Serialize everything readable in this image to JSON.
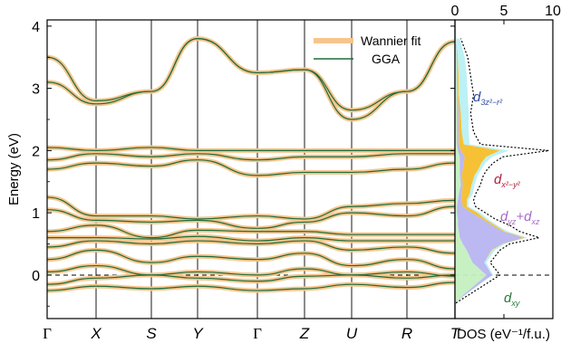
{
  "colors": {
    "wannier": "#f6c58d",
    "gga": "#1f6b3a",
    "frame": "#000000",
    "dos_dz2": "#b8f0f4",
    "dos_dx2y2": "#f5be2a",
    "dos_dyzxz": "#b8b4f0",
    "dos_dxy": "#c4f0c0",
    "label_dz2": "#2e4b9c",
    "label_dx2y2": "#b3203a",
    "label_dyzxz": "#a86ac8",
    "label_dxy": "#2a7a38"
  },
  "legend": {
    "wannier": "Wannier fit",
    "gga": "GGA"
  },
  "ylabel": "Energy (eV)",
  "dos_xlabel": "DOS (eV⁻¹/f.u.)",
  "kpoints": [
    "Γ",
    "X",
    "S",
    "Y",
    "Γ",
    "Z",
    "U",
    "R",
    "T"
  ],
  "orbitals": {
    "dz2": {
      "main": "d",
      "sub": "3z²−r²"
    },
    "dx2y2": {
      "main": "d",
      "sub": "x²−y²"
    },
    "dyzxz": {
      "main1": "d",
      "sub1": "yz",
      "plus": "+",
      "main2": "d",
      "sub2": "xz"
    },
    "dxy": {
      "main": "d",
      "sub": "xy"
    }
  },
  "chart_data": [
    {
      "type": "line",
      "title": "",
      "xlabel": "",
      "ylabel": "Energy (eV)",
      "ylim": [
        -0.7,
        4.1
      ],
      "yticks": [
        0,
        1,
        2,
        3,
        4
      ],
      "x_tick_labels": [
        "Γ",
        "X",
        "S",
        "Y",
        "Γ",
        "Z",
        "U",
        "R",
        "T"
      ],
      "fermi_level": 0,
      "series": [
        {
          "name": "Wannier fit",
          "style": "thick light orange"
        },
        {
          "name": "GGA",
          "style": "thin dark green"
        }
      ],
      "bands": [
        [
          -0.25,
          -0.18,
          -0.22,
          -0.18,
          -0.25,
          -0.22,
          -0.15,
          -0.2,
          -0.12
        ],
        [
          -0.15,
          -0.05,
          0.0,
          -0.05,
          -0.1,
          -0.02,
          0.0,
          -0.05,
          0.0
        ],
        [
          0.05,
          0.15,
          0.0,
          0.05,
          0.0,
          0.1,
          0.0,
          0.05,
          -0.02
        ],
        [
          0.25,
          0.4,
          0.2,
          0.3,
          0.25,
          0.35,
          0.15,
          0.25,
          0.1
        ],
        [
          0.45,
          0.55,
          0.5,
          0.55,
          0.5,
          0.55,
          0.4,
          0.45,
          0.35
        ],
        [
          0.6,
          0.6,
          0.58,
          0.62,
          0.55,
          0.6,
          0.55,
          0.55,
          0.55
        ],
        [
          0.7,
          0.8,
          0.6,
          0.72,
          0.7,
          0.7,
          0.65,
          0.65,
          0.65
        ],
        [
          1.05,
          0.88,
          0.85,
          0.88,
          0.75,
          0.85,
          1.0,
          0.95,
          1.1
        ],
        [
          1.25,
          0.95,
          0.95,
          0.9,
          0.95,
          0.9,
          1.1,
          1.15,
          1.2
        ],
        [
          1.7,
          1.8,
          1.75,
          1.85,
          1.6,
          1.65,
          1.65,
          1.7,
          1.8
        ],
        [
          1.85,
          1.95,
          1.9,
          1.95,
          1.85,
          1.9,
          1.9,
          1.95,
          1.95
        ],
        [
          2.05,
          2.0,
          2.05,
          2.0,
          2.0,
          2.0,
          2.0,
          2.0,
          2.0
        ],
        [
          3.1,
          2.75,
          2.95,
          3.8,
          3.25,
          3.3,
          2.5,
          2.95,
          3.75
        ],
        [
          3.5,
          2.8,
          2.95,
          3.8,
          3.25,
          3.3,
          2.65,
          2.95,
          3.75
        ]
      ]
    },
    {
      "type": "area",
      "title": "",
      "xlabel": "DOS (eV⁻¹/f.u.)",
      "xlim": [
        0,
        10
      ],
      "xticks": [
        0,
        5,
        10
      ],
      "ylim": [
        -0.7,
        4.1
      ],
      "energies": [
        -0.45,
        -0.3,
        -0.1,
        0.0,
        0.2,
        0.4,
        0.5,
        0.6,
        0.7,
        0.8,
        0.9,
        1.0,
        1.1,
        1.2,
        1.3,
        1.45,
        1.6,
        1.7,
        1.8,
        1.9,
        2.0,
        2.1,
        2.3,
        2.6,
        2.9,
        3.2,
        3.5,
        3.8
      ],
      "series": [
        {
          "name": "d_xy",
          "values": [
            0.0,
            1.0,
            2.5,
            3.2,
            1.8,
            1.2,
            0.8,
            0.5,
            0.4,
            0.3,
            0.3,
            0.2,
            0.2,
            0.3,
            0.4,
            0.6,
            0.5,
            0.5,
            0.5,
            0.5,
            0.3,
            0.2,
            0.2,
            0.2,
            0.2,
            0.2,
            0.2,
            0.1
          ]
        },
        {
          "name": "d_yz+d_xz",
          "values": [
            0.0,
            0.2,
            0.4,
            0.6,
            1.2,
            2.5,
            4.0,
            6.5,
            4.5,
            3.5,
            2.5,
            1.5,
            0.6,
            0.4,
            0.3,
            0.2,
            0.2,
            0.3,
            0.4,
            0.5,
            0.3,
            0.2,
            0.2,
            0.2,
            0.1,
            0.1,
            0.1,
            0.0
          ]
        },
        {
          "name": "d_x²−y²",
          "values": [
            0.0,
            0.0,
            0.0,
            0.0,
            0.0,
            0.1,
            0.1,
            0.2,
            0.2,
            0.3,
            0.3,
            0.6,
            0.4,
            0.5,
            0.8,
            0.9,
            1.3,
            1.6,
            1.8,
            2.2,
            4.0,
            0.5,
            0.3,
            0.2,
            0.1,
            0.1,
            0.0,
            0.0
          ]
        },
        {
          "name": "d_3z²−r²",
          "values": [
            0.0,
            0.0,
            0.1,
            0.1,
            0.2,
            0.3,
            0.2,
            0.2,
            0.3,
            0.2,
            0.3,
            0.3,
            0.2,
            0.2,
            0.3,
            0.3,
            0.3,
            0.3,
            0.4,
            0.6,
            0.9,
            0.6,
            0.7,
            0.8,
            0.9,
            0.8,
            0.7,
            0.4
          ]
        }
      ],
      "total_dos_dotted": [
        0.1,
        1.6,
        3.6,
        4.6,
        3.6,
        4.6,
        5.6,
        8.6,
        6.6,
        5.6,
        4.1,
        3.1,
        2.1,
        1.9,
        2.1,
        2.6,
        2.9,
        3.3,
        3.9,
        4.9,
        9.6,
        2.6,
        1.9,
        1.6,
        1.9,
        1.6,
        1.3,
        0.6
      ]
    }
  ]
}
